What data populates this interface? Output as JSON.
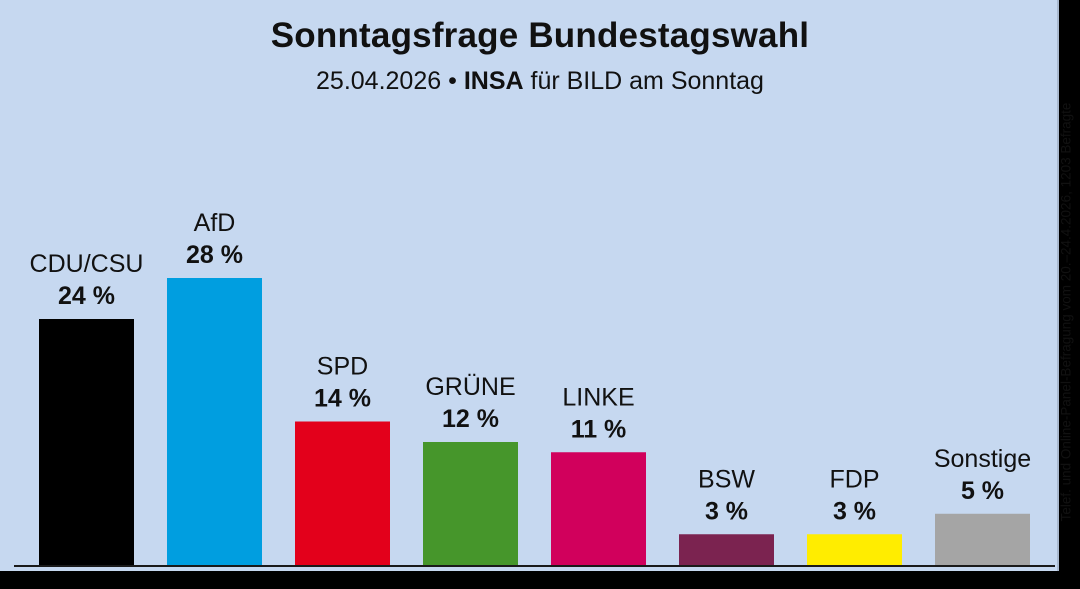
{
  "chart_data": {
    "type": "bar",
    "title": "Sonntagsfrage Bundestagswahl",
    "subtitle": {
      "date": "25.04.2026",
      "separator": "•",
      "institute": "INSA",
      "client": "für BILD am Sonntag"
    },
    "side_note": "Telef. und Online-Panel-Befragung vom 20.–24.4.2026, 1203 Befragte",
    "categories": [
      "CDU/CSU",
      "AfD",
      "SPD",
      "GRÜNE",
      "LINKE",
      "BSW",
      "FDP",
      "Sonstige"
    ],
    "values": [
      24,
      28,
      14,
      12,
      11,
      3,
      3,
      5
    ],
    "value_labels": [
      "24 %",
      "28 %",
      "14 %",
      "12 %",
      "11 %",
      "3 %",
      "3 %",
      "5 %"
    ],
    "colors": [
      "#000000",
      "#009ee0",
      "#e3001b",
      "#46962b",
      "#d1005c",
      "#7b2350",
      "#ffed00",
      "#a5a5a5"
    ],
    "unit": "%",
    "xlabel": "",
    "ylabel": "",
    "ylim": [
      0,
      28
    ],
    "grid": false,
    "legend": "none"
  }
}
